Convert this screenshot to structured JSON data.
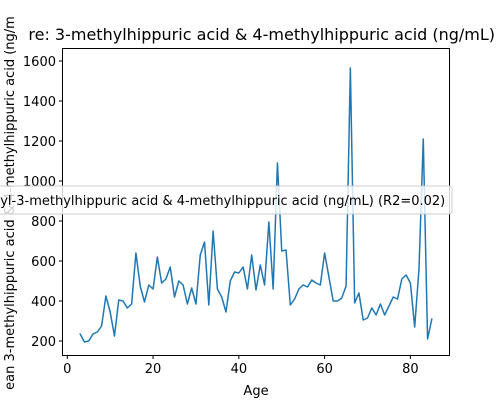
{
  "chart_data": {
    "type": "line",
    "title": "re: 3-methylhippuric acid & 4-methylhippuric acid (ng/mL) v",
    "xlabel": "Age",
    "ylabel": "ean 3-methylhippuric acid & 4-methylhippuric acid (ng/m",
    "xlim": [
      -1,
      89
    ],
    "ylim": [
      130,
      1660
    ],
    "xticks": [
      0,
      20,
      40,
      60,
      80
    ],
    "yticks": [
      200,
      400,
      600,
      800,
      1000,
      1200,
      1400,
      1600
    ],
    "grid": false,
    "legend_position": "center",
    "line_color": "#1f77b4",
    "series": [
      {
        "name": "hyl-3-methylhippuric acid & 4-methylhippuric acid (ng/mL) (R2=0.02)",
        "x": [
          3,
          4,
          5,
          6,
          7,
          8,
          9,
          10,
          11,
          12,
          13,
          14,
          15,
          16,
          17,
          18,
          19,
          20,
          21,
          22,
          23,
          24,
          25,
          26,
          27,
          28,
          29,
          30,
          31,
          32,
          33,
          34,
          35,
          36,
          37,
          38,
          39,
          40,
          41,
          42,
          43,
          44,
          45,
          46,
          47,
          48,
          49,
          50,
          51,
          52,
          53,
          54,
          55,
          56,
          57,
          58,
          59,
          60,
          61,
          62,
          63,
          64,
          65,
          66,
          67,
          68,
          69,
          70,
          71,
          72,
          73,
          74,
          75,
          76,
          77,
          78,
          79,
          80,
          81,
          82,
          83,
          84,
          85
        ],
        "y": [
          235,
          195,
          200,
          235,
          245,
          275,
          425,
          345,
          225,
          405,
          400,
          365,
          385,
          640,
          475,
          395,
          480,
          460,
          620,
          490,
          510,
          570,
          420,
          500,
          480,
          385,
          465,
          385,
          630,
          695,
          380,
          750,
          460,
          420,
          345,
          500,
          545,
          540,
          570,
          460,
          630,
          455,
          580,
          480,
          795,
          460,
          1090,
          650,
          655,
          380,
          410,
          460,
          480,
          470,
          505,
          490,
          480,
          640,
          520,
          400,
          400,
          415,
          475,
          1565,
          390,
          440,
          305,
          315,
          365,
          330,
          385,
          330,
          375,
          420,
          410,
          510,
          530,
          490,
          270,
          560,
          1210,
          210,
          310
        ]
      }
    ]
  }
}
